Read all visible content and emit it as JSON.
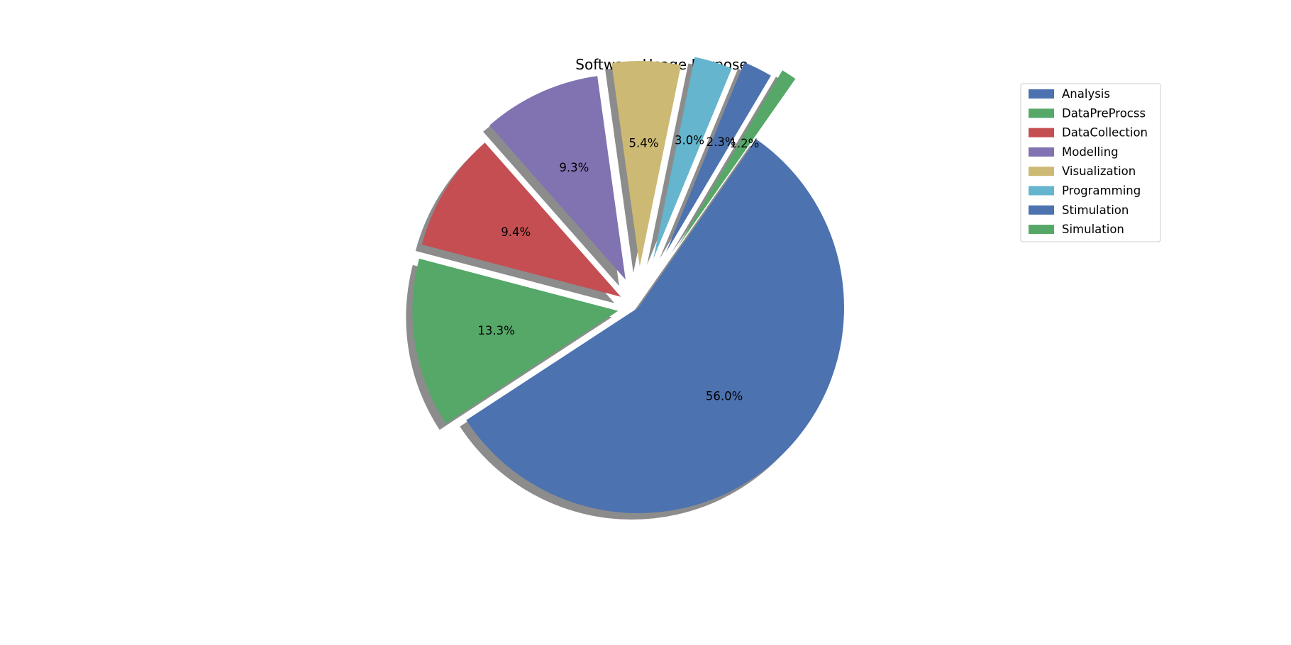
{
  "chart_data": {
    "type": "pie",
    "title": "Software Usage Purpose",
    "start_angle_deg": 55,
    "direction": "clockwise",
    "shadow": true,
    "legend_position": "upper-right",
    "slices": [
      {
        "label": "Analysis",
        "value": 56.0,
        "pct_label": "56.0%",
        "color": "#4c72b0",
        "explode": 0.0
      },
      {
        "label": "DataPreProcss",
        "value": 13.3,
        "pct_label": "13.3%",
        "color": "#55a868",
        "explode": 0.1
      },
      {
        "label": "DataCollection",
        "value": 9.4,
        "pct_label": "9.4%",
        "color": "#c44e52",
        "explode": 0.1
      },
      {
        "label": "Modelling",
        "value": 9.3,
        "pct_label": "9.3%",
        "color": "#8172b2",
        "explode": 0.15
      },
      {
        "label": "Visualization",
        "value": 5.4,
        "pct_label": "5.4%",
        "color": "#ccb974",
        "explode": 0.2
      },
      {
        "label": "Programming",
        "value": 3.0,
        "pct_label": "3.0%",
        "color": "#64b5cd",
        "explode": 0.25
      },
      {
        "label": "Stimulation",
        "value": 2.3,
        "pct_label": "2.3%",
        "color": "#4c72b0",
        "explode": 0.3
      },
      {
        "label": "Simulation",
        "value": 1.2,
        "pct_label": "1.2%",
        "color": "#55a868",
        "explode": 0.35
      }
    ]
  }
}
